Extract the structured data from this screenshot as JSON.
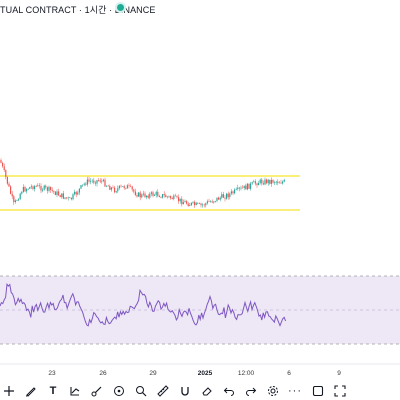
{
  "header": {
    "symbol_title": "TUAL CONTRACT · 1시간 · BINANCE",
    "status_color": "#22ab94"
  },
  "price_chart": {
    "type": "candlestick",
    "channel_color": "#f5e52a",
    "up_color": "#26a69a",
    "down_color": "#ef5350"
  },
  "rsi_panel": {
    "line_color": "#7e57c2",
    "band_fill": "#ede7f6"
  },
  "x_axis": {
    "ticks": [
      "23",
      "26",
      "29",
      "2025",
      "12:00",
      "6",
      "9"
    ]
  },
  "toolbar": {
    "icons": [
      "crosshair-icon",
      "pen-icon",
      "text-icon",
      "fork-icon",
      "brush-icon",
      "ruler-icon",
      "zoom-icon",
      "measure-icon",
      "magnet-icon",
      "eraser-icon",
      "undo-icon",
      "redo-icon",
      "more-icon",
      "square-icon",
      "fullscreen-icon"
    ]
  }
}
